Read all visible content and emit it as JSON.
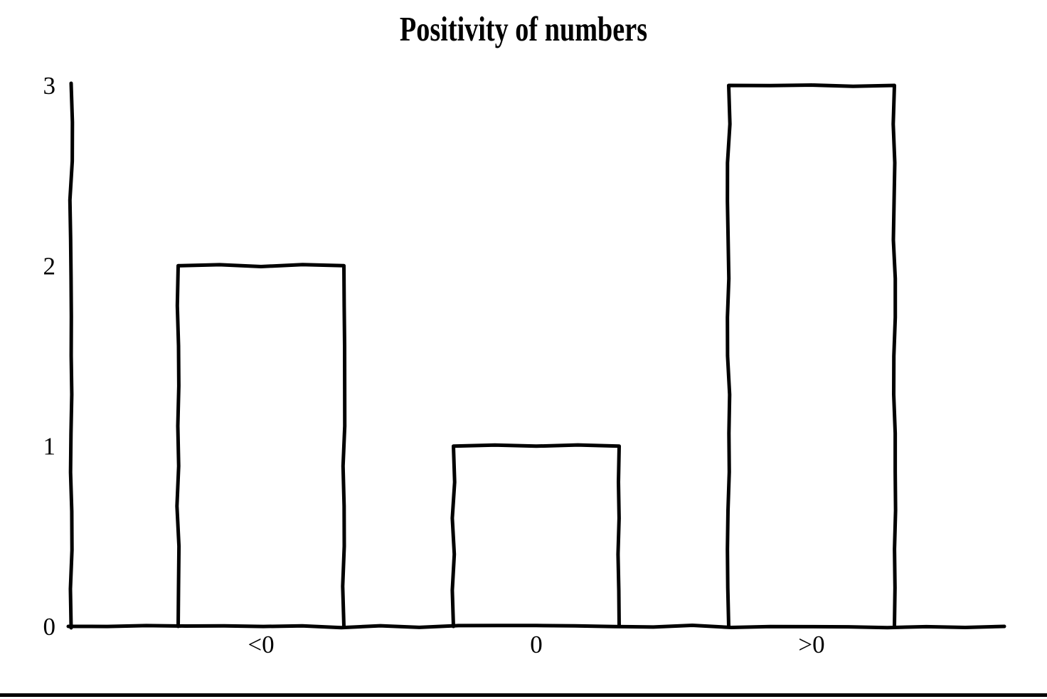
{
  "page": {
    "background_color": "#ffffff",
    "ink_color": "#000000"
  },
  "chart_data": {
    "type": "bar",
    "title": "Positivity of numbers",
    "categories": [
      "<0",
      "0",
      ">0"
    ],
    "values": [
      2,
      1,
      3
    ],
    "xlabel": "",
    "ylabel": "",
    "ylim": [
      0,
      3
    ],
    "yticks": [
      0,
      1,
      2,
      3
    ],
    "ytick_labels": [
      "0",
      "1",
      "2",
      "3"
    ],
    "grid": false,
    "legend_position": "none",
    "bar_fill": "none",
    "bar_stroke": "#000000",
    "style": "hand-drawn-outline"
  }
}
